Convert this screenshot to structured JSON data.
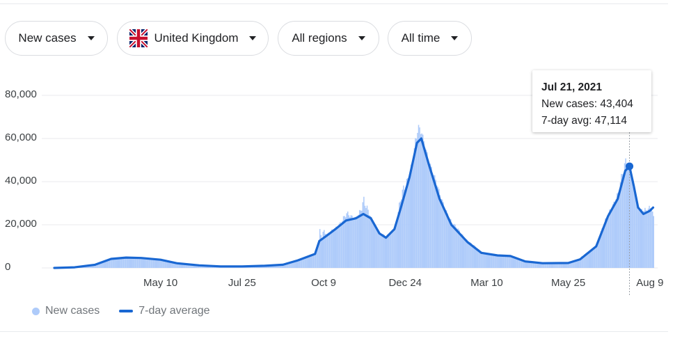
{
  "filters": {
    "metric": "New cases",
    "country": "United Kingdom",
    "region": "All regions",
    "period": "All time"
  },
  "tooltip": {
    "date": "Jul 21, 2021",
    "new_cases_text": "New cases: 43,404",
    "avg_text": "7-day avg: 47,114",
    "new_cases": 43404,
    "avg": 47114
  },
  "legend": {
    "new_cases": "New cases",
    "avg": "7-day average"
  },
  "colors": {
    "bars": "#aecbfa",
    "line": "#1967d2",
    "hover_line": "#9aa0a6"
  },
  "chart_data": {
    "type": "area",
    "title": "",
    "xlabel": "",
    "ylabel": "",
    "x_range": [
      "2020-02-01",
      "2021-08-13"
    ],
    "ylim": [
      0,
      80000
    ],
    "y_ticks": [
      0,
      20000,
      40000,
      60000,
      80000
    ],
    "y_tick_labels": [
      "0",
      "20,000",
      "40,000",
      "60,000",
      "80,000"
    ],
    "x_ticks": [
      {
        "date": "2020-05-10",
        "label": "May 10"
      },
      {
        "date": "2020-07-25",
        "label": "Jul 25"
      },
      {
        "date": "2020-10-09",
        "label": "Oct 9"
      },
      {
        "date": "2020-12-24",
        "label": "Dec 24"
      },
      {
        "date": "2021-03-10",
        "label": "Mar 10"
      },
      {
        "date": "2021-05-25",
        "label": "May 25"
      },
      {
        "date": "2021-08-09",
        "label": "Aug 9"
      }
    ],
    "grid": true,
    "legend_position": "bottom-left",
    "highlight": {
      "date": "2021-07-21",
      "new_cases": 43404,
      "avg": 47114
    },
    "series": [
      {
        "name": "7-day average",
        "points": [
          [
            "2020-02-01",
            0
          ],
          [
            "2020-02-20",
            300
          ],
          [
            "2020-03-10",
            1500
          ],
          [
            "2020-03-25",
            4200
          ],
          [
            "2020-04-08",
            4800
          ],
          [
            "2020-04-22",
            4600
          ],
          [
            "2020-05-10",
            3800
          ],
          [
            "2020-05-25",
            2200
          ],
          [
            "2020-06-15",
            1200
          ],
          [
            "2020-07-05",
            700
          ],
          [
            "2020-07-25",
            700
          ],
          [
            "2020-08-15",
            1000
          ],
          [
            "2020-09-01",
            1500
          ],
          [
            "2020-09-15",
            3500
          ],
          [
            "2020-10-01",
            6500
          ],
          [
            "2020-10-05",
            12500
          ],
          [
            "2020-10-12",
            15000
          ],
          [
            "2020-10-20",
            18000
          ],
          [
            "2020-10-30",
            22000
          ],
          [
            "2020-11-08",
            23000
          ],
          [
            "2020-11-15",
            25000
          ],
          [
            "2020-11-22",
            23000
          ],
          [
            "2020-11-30",
            16000
          ],
          [
            "2020-12-06",
            14000
          ],
          [
            "2020-12-14",
            18000
          ],
          [
            "2020-12-20",
            28000
          ],
          [
            "2020-12-28",
            42000
          ],
          [
            "2021-01-04",
            58000
          ],
          [
            "2021-01-08",
            60000
          ],
          [
            "2021-01-15",
            48000
          ],
          [
            "2021-01-25",
            32000
          ],
          [
            "2021-02-05",
            20000
          ],
          [
            "2021-02-20",
            12000
          ],
          [
            "2021-03-05",
            7000
          ],
          [
            "2021-03-20",
            5800
          ],
          [
            "2021-04-01",
            5500
          ],
          [
            "2021-04-15",
            3000
          ],
          [
            "2021-05-01",
            2200
          ],
          [
            "2021-05-25",
            2300
          ],
          [
            "2021-06-05",
            4000
          ],
          [
            "2021-06-20",
            10000
          ],
          [
            "2021-07-01",
            24000
          ],
          [
            "2021-07-10",
            32000
          ],
          [
            "2021-07-17",
            45000
          ],
          [
            "2021-07-21",
            47114
          ],
          [
            "2021-07-25",
            38000
          ],
          [
            "2021-07-29",
            28000
          ],
          [
            "2021-08-03",
            25000
          ],
          [
            "2021-08-09",
            26500
          ],
          [
            "2021-08-12",
            28000
          ]
        ]
      },
      {
        "name": "New cases",
        "points": [
          [
            "2020-02-01",
            0
          ],
          [
            "2020-02-20",
            400
          ],
          [
            "2020-03-10",
            1800
          ],
          [
            "2020-03-25",
            4500
          ],
          [
            "2020-04-08",
            5200
          ],
          [
            "2020-04-22",
            5000
          ],
          [
            "2020-05-10",
            4200
          ],
          [
            "2020-05-25",
            2500
          ],
          [
            "2020-06-15",
            1400
          ],
          [
            "2020-07-05",
            800
          ],
          [
            "2020-07-25",
            800
          ],
          [
            "2020-08-15",
            1100
          ],
          [
            "2020-09-01",
            1700
          ],
          [
            "2020-09-15",
            4000
          ],
          [
            "2020-10-01",
            7000
          ],
          [
            "2020-10-05",
            22500
          ],
          [
            "2020-10-12",
            16000
          ],
          [
            "2020-10-20",
            20000
          ],
          [
            "2020-10-30",
            26500
          ],
          [
            "2020-11-08",
            24000
          ],
          [
            "2020-11-15",
            33500
          ],
          [
            "2020-11-22",
            24000
          ],
          [
            "2020-11-30",
            16500
          ],
          [
            "2020-12-06",
            15000
          ],
          [
            "2020-12-14",
            20000
          ],
          [
            "2020-12-20",
            36000
          ],
          [
            "2020-12-28",
            48000
          ],
          [
            "2021-01-04",
            68000
          ],
          [
            "2021-01-08",
            64000
          ],
          [
            "2021-01-15",
            52000
          ],
          [
            "2021-01-25",
            35000
          ],
          [
            "2021-02-05",
            22000
          ],
          [
            "2021-02-20",
            13000
          ],
          [
            "2021-03-05",
            7500
          ],
          [
            "2021-03-20",
            6200
          ],
          [
            "2021-04-01",
            6000
          ],
          [
            "2021-04-15",
            3200
          ],
          [
            "2021-05-01",
            2500
          ],
          [
            "2021-05-25",
            2600
          ],
          [
            "2021-06-05",
            5000
          ],
          [
            "2021-06-20",
            11000
          ],
          [
            "2021-07-01",
            28000
          ],
          [
            "2021-07-10",
            36000
          ],
          [
            "2021-07-17",
            54000
          ],
          [
            "2021-07-21",
            43404
          ],
          [
            "2021-07-25",
            34000
          ],
          [
            "2021-07-29",
            26000
          ],
          [
            "2021-08-03",
            29000
          ],
          [
            "2021-08-09",
            31000
          ],
          [
            "2021-08-12",
            23000
          ]
        ]
      }
    ]
  }
}
